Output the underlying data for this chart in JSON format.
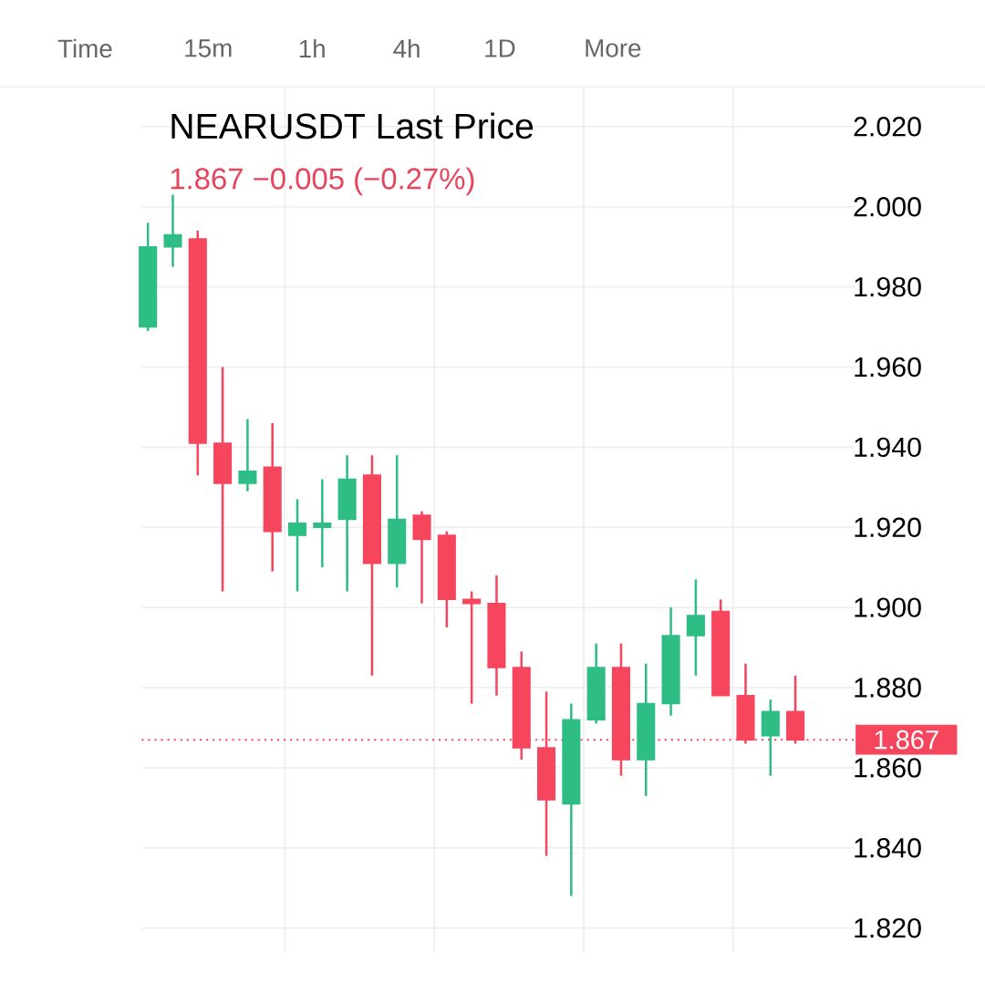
{
  "chart_data": {
    "type": "candlestick",
    "title": "NEARUSDT Last Price",
    "subtitle": "1.867  −0.005 (−0.27%)",
    "annotations": [
      "Time",
      "15m",
      "1h",
      "4h",
      "1D",
      "More"
    ],
    "categories": [
      null,
      null,
      null,
      null,
      null,
      null,
      null,
      null,
      null,
      null,
      null,
      null,
      null,
      null,
      null,
      null,
      null,
      null,
      null,
      null,
      null,
      null,
      null,
      null,
      null,
      null,
      null
    ],
    "ohlc": [
      [
        1.97,
        1.996,
        1.969,
        1.99
      ],
      [
        1.99,
        2.003,
        1.985,
        1.993
      ],
      [
        1.992,
        1.994,
        1.933,
        1.941
      ],
      [
        1.941,
        1.96,
        1.904,
        1.931
      ],
      [
        1.931,
        1.947,
        1.929,
        1.934
      ],
      [
        1.935,
        1.946,
        1.909,
        1.919
      ],
      [
        1.918,
        1.927,
        1.904,
        1.921
      ],
      [
        1.92,
        1.932,
        1.91,
        1.921
      ],
      [
        1.922,
        1.938,
        1.904,
        1.932
      ],
      [
        1.933,
        1.938,
        1.883,
        1.911
      ],
      [
        1.911,
        1.938,
        1.905,
        1.922
      ],
      [
        1.923,
        1.924,
        1.901,
        1.917
      ],
      [
        1.918,
        1.919,
        1.895,
        1.902
      ],
      [
        1.902,
        1.904,
        1.876,
        1.901
      ],
      [
        1.901,
        1.908,
        1.878,
        1.885
      ],
      [
        1.885,
        1.889,
        1.862,
        1.865
      ],
      [
        1.865,
        1.879,
        1.838,
        1.852
      ],
      [
        1.851,
        1.876,
        1.828,
        1.872
      ],
      [
        1.872,
        1.891,
        1.871,
        1.885
      ],
      [
        1.885,
        1.891,
        1.858,
        1.862
      ],
      [
        1.862,
        1.886,
        1.853,
        1.876
      ],
      [
        1.876,
        1.9,
        1.873,
        1.893
      ],
      [
        1.893,
        1.907,
        1.883,
        1.898
      ],
      [
        1.899,
        1.902,
        1.878,
        1.878
      ],
      [
        1.878,
        1.886,
        1.866,
        1.867
      ],
      [
        1.868,
        1.877,
        1.858,
        1.874
      ],
      [
        1.874,
        1.883,
        1.866,
        1.867
      ]
    ],
    "colors": [
      "#2ebd85",
      "#2ebd85",
      "#f6465d",
      "#f6465d",
      "#2ebd85",
      "#f6465d",
      "#2ebd85",
      "#2ebd85",
      "#2ebd85",
      "#f6465d",
      "#2ebd85",
      "#f6465d",
      "#f6465d",
      "#f6465d",
      "#f6465d",
      "#f6465d",
      "#f6465d",
      "#2ebd85",
      "#2ebd85",
      "#f6465d",
      "#2ebd85",
      "#2ebd85",
      "#2ebd85",
      "#f6465d",
      "#f6465d",
      "#2ebd85",
      "#f6465d"
    ],
    "ylim": [
      1.814,
      2.03
    ],
    "yticks": [
      {
        "value": 1.82,
        "label": "1.820"
      },
      {
        "value": 1.84,
        "label": "1.840"
      },
      {
        "value": 1.86,
        "label": "1.860"
      },
      {
        "value": 1.88,
        "label": "1.880"
      },
      {
        "value": 1.9,
        "label": "1.900"
      },
      {
        "value": 1.92,
        "label": "1.920"
      },
      {
        "value": 1.94,
        "label": "1.940"
      },
      {
        "value": 1.96,
        "label": "1.960"
      },
      {
        "value": 1.98,
        "label": "1.980"
      },
      {
        "value": 2.0,
        "label": "2.000"
      },
      {
        "value": 2.02,
        "label": "2.020"
      }
    ],
    "ref_lines": [
      {
        "axis": "y",
        "value": 1.867,
        "label": "1.867",
        "color": "#f6465d",
        "line_style": "dotted"
      }
    ],
    "grid": true,
    "tick_labels": "y"
  }
}
